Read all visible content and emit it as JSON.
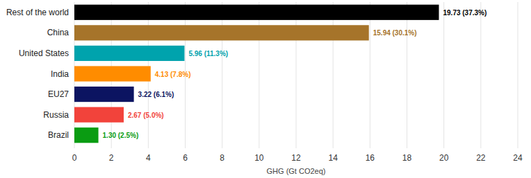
{
  "chart_data": {
    "type": "bar",
    "orientation": "horizontal",
    "x_label": "GHG (Gt CO2eq)",
    "categories": [
      "Rest of the world",
      "China",
      "United States",
      "India",
      "EU27",
      "Russia",
      "Brazil"
    ],
    "values": [
      19.73,
      15.94,
      5.96,
      4.13,
      3.22,
      2.67,
      1.3
    ],
    "value_labels": [
      "19.73 (37.3%)",
      "15.94 (30.1%)",
      "5.96 (11.3%)",
      "4.13 (7.8%)",
      "3.22 (6.1%)",
      "2.67 (5.0%)",
      "1.30 (2.5%)"
    ],
    "colors": [
      "#000000",
      "#a6742a",
      "#00a3ad",
      "#ff8c00",
      "#0c1461",
      "#f2433b",
      "#0a9c12"
    ],
    "xlim": [
      0,
      24
    ],
    "xticks": [
      0,
      2,
      4,
      6,
      8,
      10,
      12,
      14,
      16,
      18,
      20,
      22,
      24
    ],
    "grid": true,
    "data_labels": true
  }
}
